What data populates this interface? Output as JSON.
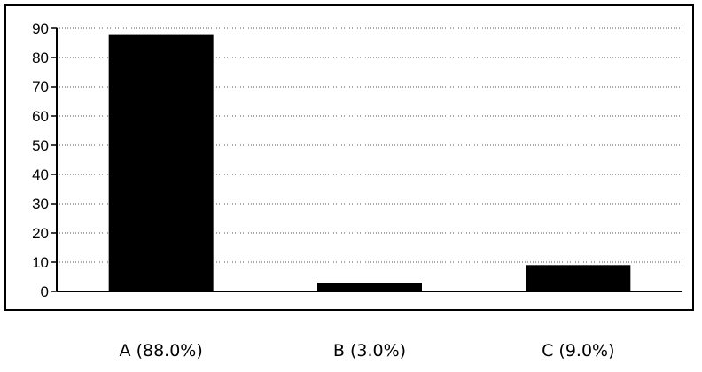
{
  "chart_data": {
    "type": "bar",
    "categories": [
      "A (88.0%)",
      "B (3.0%)",
      "C (9.0%)"
    ],
    "values": [
      88,
      3,
      9
    ],
    "title": "",
    "xlabel": "",
    "ylabel": "",
    "ylim": [
      0,
      90
    ],
    "yticks": [
      0,
      10,
      20,
      30,
      40,
      50,
      60,
      70,
      80,
      90
    ],
    "grid": true,
    "legend": "none",
    "bar_color": "#000000",
    "grid_color": "#555555"
  }
}
